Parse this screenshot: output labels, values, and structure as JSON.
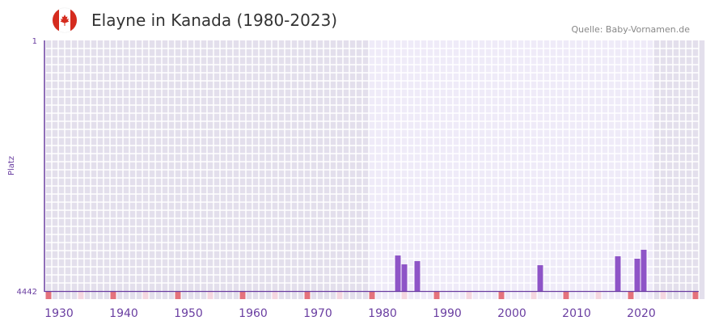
{
  "header": {
    "title": "Elayne in Kanada (1980-2023)",
    "source": "Quelle: Baby-Vornamen.de",
    "flag_icon": "canada-flag-icon"
  },
  "colors": {
    "bar": "#8e54c7",
    "axis": "#6a3ea1",
    "bg_dark": "#e3dfec",
    "bg_light": "#efebf8",
    "mark_red": "#e4727c",
    "mark_pink": "#f4d6e0"
  },
  "chart_data": {
    "type": "bar",
    "title": "Elayne in Kanada (1980-2023)",
    "xlabel": "",
    "ylabel": "Platz",
    "xlim": [
      1928,
      2029
    ],
    "ylim": [
      4442,
      1
    ],
    "ytick_labels": [
      "1",
      "4442"
    ],
    "xtick_labels": [
      "1930",
      "1940",
      "1950",
      "1960",
      "1970",
      "1980",
      "1990",
      "2000",
      "2010",
      "2020"
    ],
    "highlight_range": [
      1978,
      2021
    ],
    "x": [
      1982,
      1983,
      1985,
      2004,
      2016,
      2019,
      2020
    ],
    "values": [
      3812,
      3969,
      3912,
      3984,
      3826,
      3869,
      3711
    ]
  }
}
